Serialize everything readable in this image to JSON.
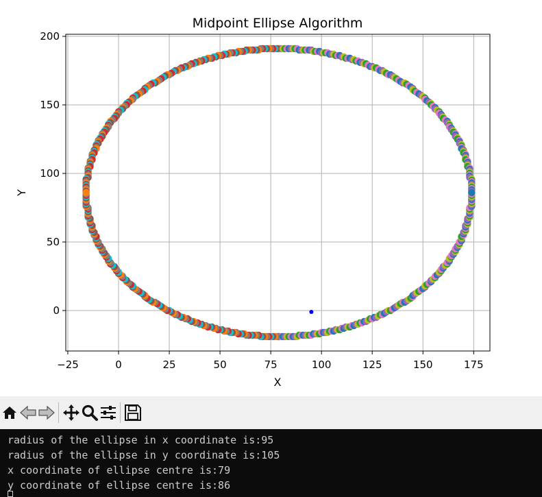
{
  "chart_data": {
    "type": "scatter",
    "title": "Midpoint Ellipse Algorithm",
    "xlabel": "X",
    "ylabel": "Y",
    "xlim": [
      -26,
      183
    ],
    "ylim": [
      -29.5,
      201.5
    ],
    "xticks": [
      "−25",
      "0",
      "25",
      "50",
      "75",
      "100",
      "125",
      "150",
      "175"
    ],
    "xtick_values": [
      -25,
      0,
      25,
      50,
      75,
      100,
      125,
      150,
      175
    ],
    "yticks": [
      "0",
      "50",
      "100",
      "150",
      "200"
    ],
    "ytick_values": [
      0,
      50,
      100,
      150,
      200
    ],
    "grid": true,
    "ellipse": {
      "center_x": 79,
      "center_y": 86,
      "radius_x": 95,
      "radius_y": 105
    },
    "extra_point": {
      "x": 95,
      "y": -1,
      "color": "#0000ff"
    },
    "point_colors": [
      "#1f77b4",
      "#ff7f0e",
      "#2ca02c",
      "#d62728",
      "#9467bd",
      "#8c564b",
      "#e377c2",
      "#7f7f7f",
      "#bcbd22",
      "#17becf"
    ]
  },
  "toolbar": {
    "buttons": [
      "home-icon",
      "back-icon",
      "forward-icon",
      "pan-icon",
      "zoom-icon",
      "configure-subplots-icon",
      "save-icon"
    ]
  },
  "terminal": {
    "lines": [
      "radius of the ellipse in x coordinate is:95",
      "radius of the ellipse in y coordinate is:105",
      "x coordinate of ellipse centre is:79",
      "y coordinate of ellipse centre is:86"
    ]
  }
}
